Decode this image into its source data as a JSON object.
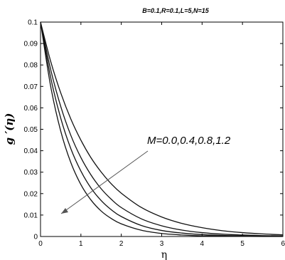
{
  "chart_data": {
    "type": "line",
    "title": "B=0.1,R=0.1,L=5,N=15",
    "xlabel": "η",
    "ylabel": "g ′(η)",
    "xlim": [
      0,
      6
    ],
    "ylim": [
      0,
      0.1
    ],
    "xticks": [
      "0",
      "1",
      "2",
      "3",
      "4",
      "5",
      "6"
    ],
    "yticks": [
      "0",
      "0.01",
      "0.02",
      "0.03",
      "0.04",
      "0.05",
      "0.06",
      "0.07",
      "0.08",
      "0.09",
      "0.1"
    ],
    "grid": false,
    "legend": "none",
    "annotation": "M=0.0,0.4,0.8,1.2",
    "x": [
      0,
      0.25,
      0.5,
      0.75,
      1,
      1.25,
      1.5,
      1.75,
      2,
      2.5,
      3,
      3.5,
      4,
      4.5,
      5,
      5.5,
      6
    ],
    "series": [
      {
        "values": [
          0.1,
          0.0818,
          0.067,
          0.0548,
          0.0449,
          0.0367,
          0.0301,
          0.0246,
          0.0202,
          0.0135,
          0.0091,
          0.0061,
          0.0041,
          0.0027,
          0.0018,
          0.0012,
          0.0008
        ]
      },
      {
        "values": [
          0.1,
          0.078,
          0.0607,
          0.0472,
          0.0368,
          0.0287,
          0.0223,
          0.0174,
          0.0135,
          0.0082,
          0.005,
          0.003,
          0.0018,
          0.0011,
          0.0007,
          0.0004,
          0.0003
        ]
      },
      {
        "values": [
          0.1,
          0.0743,
          0.0552,
          0.041,
          0.0305,
          0.0226,
          0.0168,
          0.0125,
          0.0093,
          0.0051,
          0.0028,
          0.0016,
          0.0009,
          0.0005,
          0.0003,
          0.0001,
          0.0001
        ]
      },
      {
        "values": [
          0.1,
          0.0702,
          0.0492,
          0.0345,
          0.0242,
          0.017,
          0.0119,
          0.0084,
          0.0059,
          0.0029,
          0.0014,
          0.0007,
          0.0003,
          0.0002,
          0.0001,
          0.0,
          0.0
        ]
      }
    ]
  }
}
